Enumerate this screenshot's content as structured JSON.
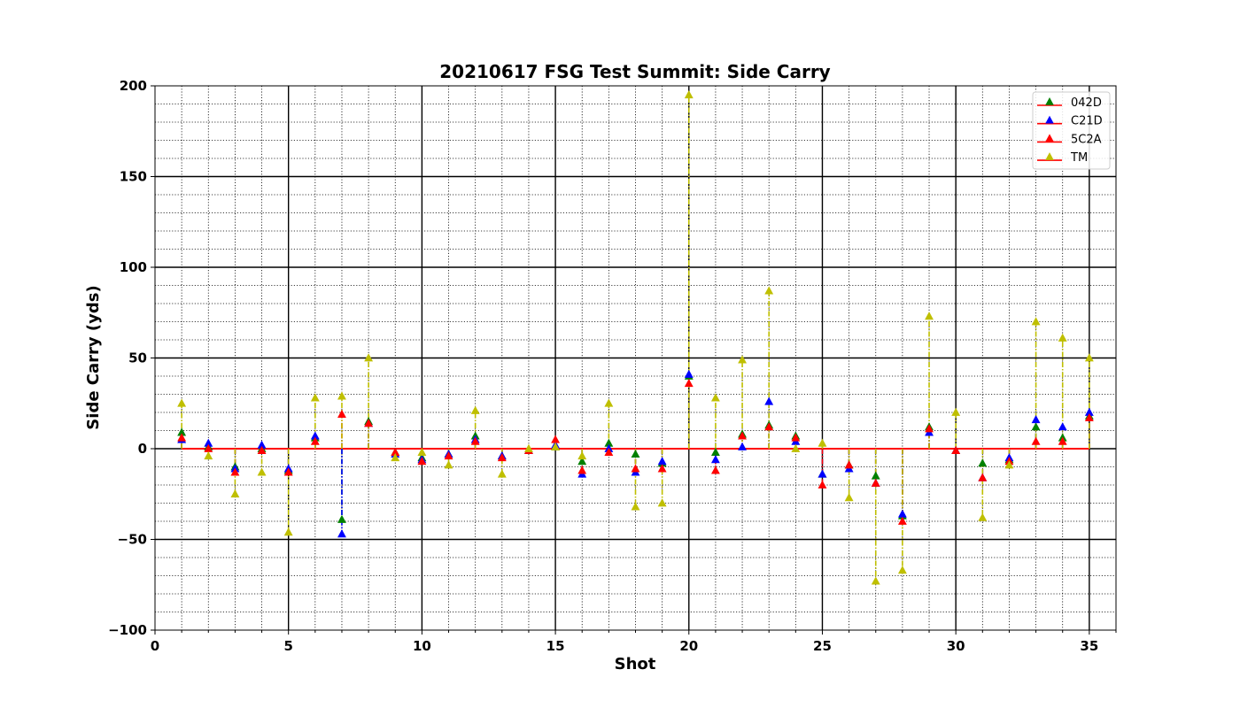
{
  "chart_data": {
    "type": "scatter",
    "title": "20210617 FSG Test Summit: Side Carry",
    "xlabel": "Shot",
    "ylabel": "Side Carry (yds)",
    "xlim": [
      0,
      36
    ],
    "ylim": [
      -100,
      200
    ],
    "xticks": [
      0,
      5,
      10,
      15,
      20,
      25,
      30,
      35
    ],
    "yticks": [
      -100,
      -50,
      0,
      50,
      100,
      150,
      200
    ],
    "x_tick_labels": [
      "0",
      "5",
      "10",
      "15",
      "20",
      "25",
      "30",
      "35"
    ],
    "y_tick_labels": [
      "−100",
      "−50",
      "0",
      "50",
      "100",
      "150",
      "200"
    ],
    "grid": true,
    "reference_line": {
      "y": 0,
      "color": "#ff0000"
    },
    "legend_position": "top-right",
    "x": [
      1,
      2,
      3,
      4,
      5,
      6,
      7,
      8,
      9,
      10,
      11,
      12,
      13,
      14,
      15,
      16,
      17,
      18,
      19,
      20,
      21,
      22,
      23,
      24,
      25,
      26,
      27,
      28,
      29,
      30,
      31,
      32,
      33,
      34,
      35
    ],
    "series": [
      {
        "name": "042D",
        "color": "#008000",
        "values": [
          9,
          1,
          -10,
          0,
          -12,
          6,
          -39,
          15,
          -2,
          -5,
          -3,
          7,
          -4,
          -1,
          1,
          -7,
          3,
          -3,
          -8,
          40,
          -2,
          8,
          13,
          7,
          -14,
          -9,
          -15,
          -37,
          12,
          -1,
          -8,
          -6,
          12,
          6,
          18
        ]
      },
      {
        "name": "C21D",
        "color": "#0000ff",
        "values": [
          5,
          3,
          -11,
          2,
          -11,
          7,
          -47,
          14,
          -3,
          -6,
          -3,
          5,
          -4,
          -1,
          2,
          -14,
          0,
          -13,
          -7,
          41,
          -6,
          1,
          26,
          4,
          -14,
          -11,
          -19,
          -36,
          9,
          -1,
          -16,
          -5,
          16,
          12,
          20
        ]
      },
      {
        "name": "5C2A",
        "color": "#ff0000",
        "values": [
          6,
          0,
          -13,
          -1,
          -13,
          4,
          19,
          14,
          -2,
          -7,
          -4,
          4,
          -5,
          -1,
          5,
          -12,
          -2,
          -11,
          -11,
          36,
          -12,
          7,
          12,
          6,
          -20,
          -9,
          -19,
          -40,
          11,
          -1,
          -16,
          -7,
          4,
          4,
          17
        ]
      },
      {
        "name": "TM",
        "color": "#bfbf00",
        "values": [
          25,
          -4,
          -25,
          -13,
          -46,
          28,
          29,
          50,
          -5,
          -2,
          -9,
          21,
          -14,
          0,
          1,
          -4,
          25,
          -32,
          -30,
          195,
          28,
          49,
          87,
          0,
          3,
          -27,
          -73,
          -67,
          73,
          20,
          -38,
          -9,
          70,
          61,
          50
        ]
      }
    ]
  }
}
